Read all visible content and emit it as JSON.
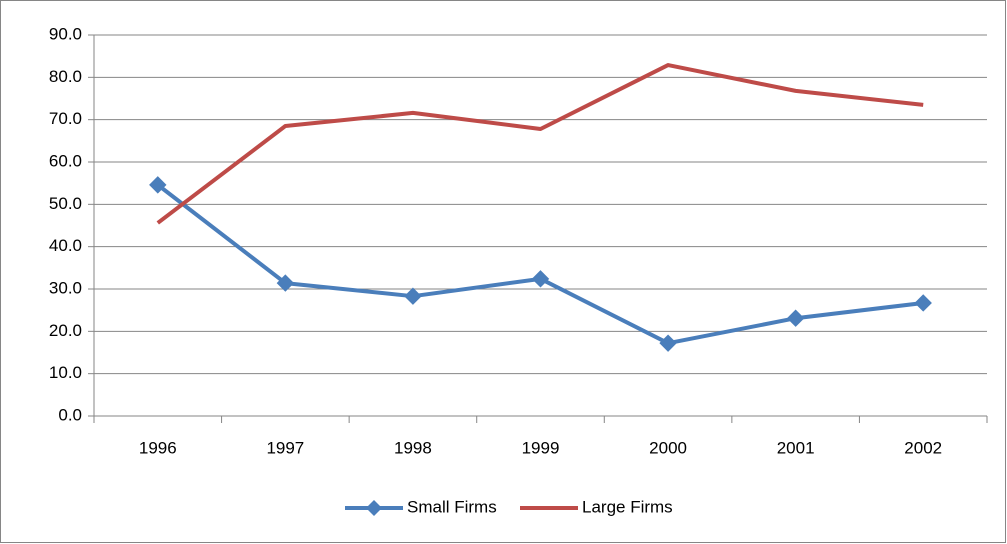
{
  "chart_data": {
    "type": "line",
    "categories": [
      "1996",
      "1997",
      "1998",
      "1999",
      "2000",
      "2001",
      "2002"
    ],
    "series": [
      {
        "name": "Small Firms",
        "color": "#4a7ebb",
        "marker": "diamond",
        "values": [
          54.6,
          31.4,
          28.3,
          32.4,
          17.2,
          23.1,
          26.7
        ]
      },
      {
        "name": "Large Firms",
        "color": "#be4b48",
        "marker": "none",
        "values": [
          45.6,
          68.5,
          71.6,
          67.8,
          82.9,
          76.8,
          73.5
        ]
      }
    ],
    "ylim": [
      0,
      90
    ],
    "yticks": [
      {
        "value": 0,
        "label": "0.0"
      },
      {
        "value": 10,
        "label": "10.0"
      },
      {
        "value": 20,
        "label": "20.0"
      },
      {
        "value": 30,
        "label": "30.0"
      },
      {
        "value": 40,
        "label": "40.0"
      },
      {
        "value": 50,
        "label": "50.0"
      },
      {
        "value": 60,
        "label": "60.0"
      },
      {
        "value": 70,
        "label": "70.0"
      },
      {
        "value": 80,
        "label": "80.0"
      },
      {
        "value": 90,
        "label": "90.0"
      }
    ],
    "grid": true,
    "legend": "bottom"
  }
}
